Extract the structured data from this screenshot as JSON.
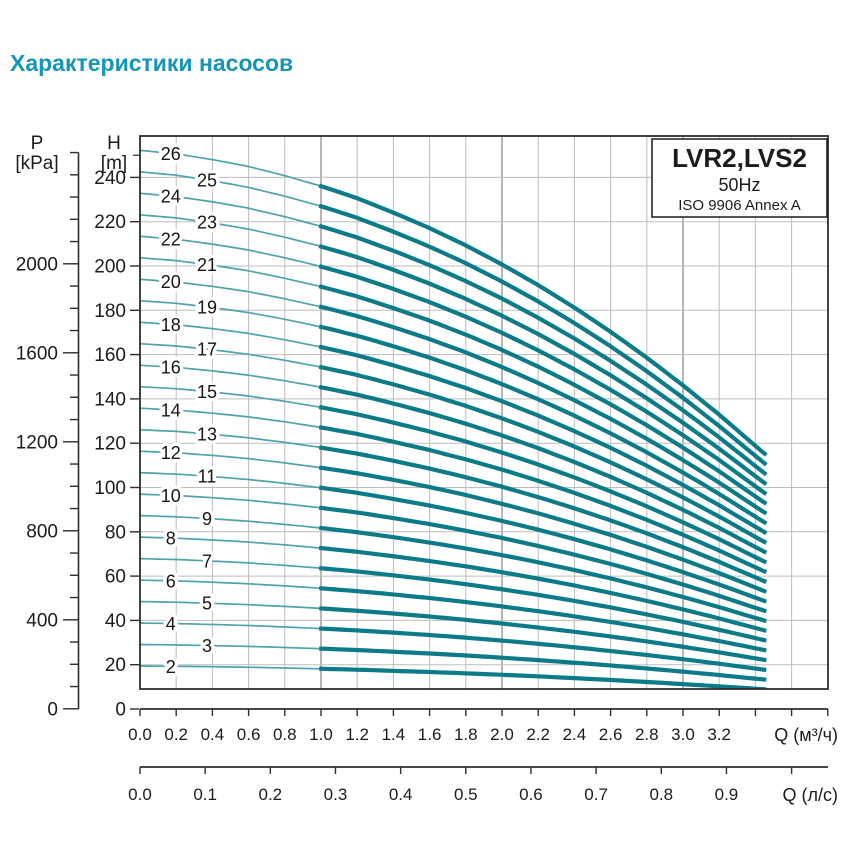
{
  "title": "Характеристики насосов",
  "legend": {
    "model": "LVR2,LVS2",
    "frequency": "50Hz",
    "standard": "ISO 9906 Annex A"
  },
  "axes": {
    "pressure": {
      "name": "P",
      "unit": "[kPa]",
      "tick_labels": [
        0,
        400,
        800,
        1200,
        1600,
        2000
      ],
      "minor_step": 100,
      "max_tick": 2500
    },
    "head": {
      "name": "H",
      "unit": "[m]",
      "tick_labels": [
        0,
        20,
        40,
        60,
        80,
        100,
        120,
        140,
        160,
        180,
        200,
        220,
        240
      ],
      "extra_minor_tick": 250
    },
    "flow_m3h": {
      "unit_label": "Q (м³/ч)",
      "tick_labels": [
        "0.0",
        "0.2",
        "0.4",
        "0.6",
        "0.8",
        "1.0",
        "1.2",
        "1.4",
        "1.6",
        "1.8",
        "2.0",
        "2.2",
        "2.4",
        "2.6",
        "2.8",
        "3.0",
        "3.2"
      ],
      "unlabeled_ticks": [
        3.4,
        3.6,
        3.8
      ],
      "grid_step": 0.2,
      "grid_max": 3.6
    },
    "flow_ls": {
      "unit_label": "Q (л/с)",
      "tick_labels": [
        "0.0",
        "0.1",
        "0.2",
        "0.3",
        "0.4",
        "0.5",
        "0.6",
        "0.7",
        "0.8",
        "0.9"
      ],
      "unlabeled_ticks": [
        1.0
      ],
      "m3h_per_ls": 3.6
    }
  },
  "chart_data": {
    "type": "line",
    "title": "LVR2,LVS2 50Hz ISO 9906 Annex A multistage pump curves",
    "xlabel": "Q (м³/ч)",
    "ylabel": "H [m] / P [kPa]",
    "xlim": [
      0,
      3.8
    ],
    "ylim_head_m": [
      0,
      258
    ],
    "grid": true,
    "x_m3h": [
      0,
      0.2,
      0.4,
      0.6,
      0.8,
      1.0,
      1.2,
      1.4,
      1.6,
      1.8,
      2.0,
      2.2,
      2.4,
      2.6,
      2.8,
      3.0,
      3.2,
      3.4,
      3.46
    ],
    "per_stage_head_m": [
      9.7,
      9.64,
      9.54,
      9.42,
      9.26,
      9.08,
      8.87,
      8.62,
      8.35,
      8.05,
      7.72,
      7.36,
      6.97,
      6.55,
      6.1,
      5.62,
      5.11,
      4.57,
      4.41
    ],
    "stages": [
      2,
      3,
      4,
      5,
      6,
      7,
      8,
      9,
      10,
      11,
      12,
      13,
      14,
      15,
      16,
      17,
      18,
      19,
      20,
      21,
      22,
      23,
      24,
      25,
      26
    ],
    "head_rule": "H(Q) = stages × per_stage_head_m(Q)",
    "duty_range_q": [
      0.99,
      3.46
    ]
  },
  "style": {
    "title_color": "#1795b6",
    "curve_thick": "#0b7b87",
    "curve_thin": "#4fa3ad",
    "grid": "#bdbdbd",
    "grid_major": "#8f8f8f",
    "axis": "#2e2e2e",
    "text": "#1c1c1c",
    "label_even_q": 0.17,
    "label_odd_q": 0.37
  }
}
